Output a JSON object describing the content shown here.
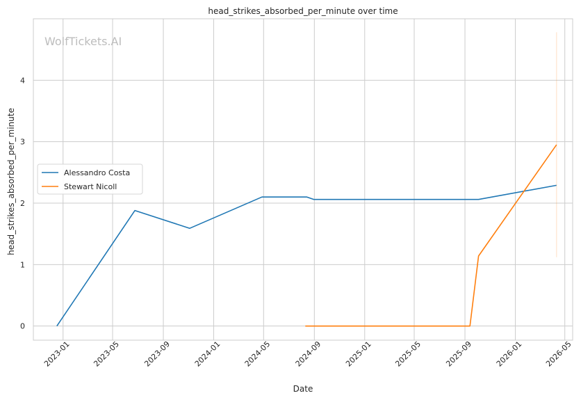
{
  "chart_data": {
    "type": "line",
    "title": "head_strikes_absorbed_per_minute over time",
    "xlabel": "Date",
    "ylabel": "head_strikes_absorbed_per_minute",
    "watermark": "WolfTickets.AI",
    "x_type": "date",
    "xlim": [
      "2022-10-21",
      "2026-05-20"
    ],
    "ylim": [
      -0.23,
      5.0
    ],
    "x_ticks": [
      "2023-01-01",
      "2023-05-01",
      "2023-09-01",
      "2024-01-01",
      "2024-05-01",
      "2024-09-01",
      "2025-01-01",
      "2025-05-01",
      "2025-09-01",
      "2026-01-01",
      "2026-05-01"
    ],
    "x_tick_labels": [
      "2023-01",
      "2023-05",
      "2023-09",
      "2024-01",
      "2024-05",
      "2024-09",
      "2025-01",
      "2025-05",
      "2025-09",
      "2026-01",
      "2026-05"
    ],
    "y_ticks": [
      0,
      1,
      2,
      3,
      4
    ],
    "y_tick_labels": [
      "0",
      "1",
      "2",
      "3",
      "4"
    ],
    "grid": true,
    "legend_position": "center-left",
    "series": [
      {
        "name": "Alessandro Costa",
        "color": "#1f77b4",
        "x": [
          "2022-12-17",
          "2023-06-24",
          "2023-11-04",
          "2024-04-27",
          "2024-08-14",
          "2024-08-31",
          "2025-10-04",
          "2026-04-11"
        ],
        "y": [
          0.0,
          1.88,
          1.59,
          2.1,
          2.1,
          2.06,
          2.06,
          2.29
        ]
      },
      {
        "name": "Stewart Nicoll",
        "color": "#ff7f0e",
        "x": [
          "2024-08-10",
          "2025-09-13",
          "2025-10-04",
          "2026-04-11"
        ],
        "y": [
          0.0,
          0.0,
          1.14,
          2.95
        ],
        "band": {
          "x": "2026-04-11",
          "low": 1.12,
          "high": 4.78
        }
      }
    ]
  }
}
